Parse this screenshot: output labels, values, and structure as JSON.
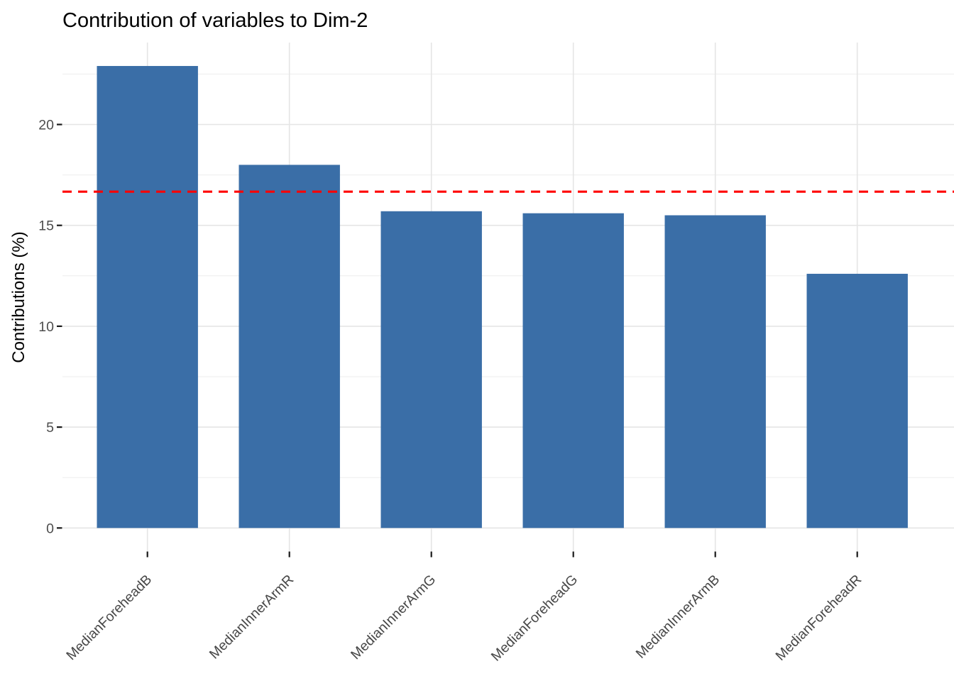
{
  "figure": {
    "title": "Contribution of variables to Dim-2",
    "y_axis_title": "Contributions (%)"
  },
  "chart_data": {
    "type": "bar",
    "title": "Contribution of variables to Dim-2",
    "categories": [
      "MedianForeheadB",
      "MedianInnerArmR",
      "MedianInnerArmG",
      "MedianForeheadG",
      "MedianInnerArmB",
      "MedianForeheadR"
    ],
    "values": [
      22.9,
      18.0,
      15.7,
      15.6,
      15.5,
      12.6
    ],
    "xlabel": "",
    "ylabel": "Contributions (%)",
    "ylim": [
      0,
      24.1
    ],
    "yticks": [
      0,
      5,
      10,
      15,
      20
    ],
    "yticks_minor": [
      2.5,
      7.5,
      12.5,
      17.5,
      22.5
    ],
    "grid": "on",
    "legend": "none",
    "reference_line": {
      "y": 16.67,
      "style": "dashed",
      "color": "#FF0000"
    }
  },
  "colors": {
    "background": "#FFFFFF",
    "bar_fill": "#3A6EA7",
    "reference_line": "#FF0000",
    "grid_major": "#E5E5E5",
    "grid_minor": "#EDEDED",
    "tick_mark": "#1A1A1A",
    "y_tick_text": "#4D4D4D",
    "x_tick_text": "#474747",
    "title_text": "#000000"
  }
}
